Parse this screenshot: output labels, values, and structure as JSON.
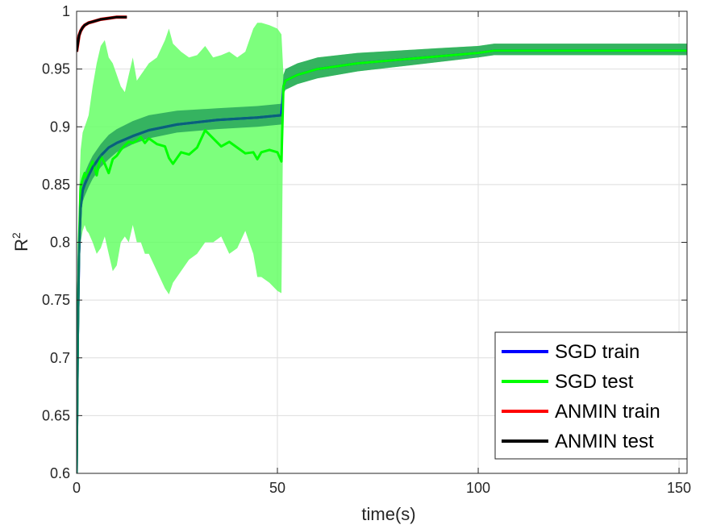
{
  "chart_data": {
    "type": "line",
    "title": "",
    "xlabel": "time(s)",
    "ylabel": "R",
    "ylabel_superscript": "2",
    "xlim": [
      0,
      152
    ],
    "ylim": [
      0.6,
      1.0
    ],
    "xticks": [
      0,
      50,
      100,
      150
    ],
    "xtick_labels": [
      "0",
      "50",
      "100",
      "150"
    ],
    "yticks": [
      0.6,
      0.65,
      0.7,
      0.75,
      0.8,
      0.85,
      0.9,
      0.95,
      1.0
    ],
    "ytick_labels": [
      "0.6",
      "0.65",
      "0.7",
      "0.75",
      "0.8",
      "0.85",
      "0.9",
      "0.95",
      "1"
    ],
    "grid": true,
    "legend_position": "bottom-right",
    "legend": [
      "SGD train",
      "SGD test",
      "ANMIN train",
      "ANMIN test"
    ],
    "series": [
      {
        "name": "SGD train",
        "color": "#0000ff",
        "x": [
          0,
          0.3,
          0.6,
          1,
          1.5,
          2,
          3,
          4,
          6,
          8,
          10,
          14,
          18,
          25,
          35,
          45,
          51,
          51.5,
          52,
          55,
          60,
          70,
          80,
          90,
          100,
          104,
          120,
          140,
          152
        ],
        "y": [
          0.6,
          0.72,
          0.79,
          0.83,
          0.845,
          0.85,
          0.858,
          0.865,
          0.875,
          0.882,
          0.886,
          0.892,
          0.897,
          0.902,
          0.906,
          0.908,
          0.91,
          0.935,
          0.94,
          0.945,
          0.95,
          0.955,
          0.958,
          0.961,
          0.964,
          0.966,
          0.966,
          0.966,
          0.966
        ],
        "band_lower": [
          0.6,
          0.71,
          0.78,
          0.82,
          0.835,
          0.84,
          0.848,
          0.855,
          0.865,
          0.872,
          0.878,
          0.885,
          0.89,
          0.895,
          0.898,
          0.9,
          0.902,
          0.928,
          0.932,
          0.937,
          0.942,
          0.948,
          0.952,
          0.956,
          0.96,
          0.962,
          0.962,
          0.962,
          0.962
        ],
        "band_upper": [
          0.6,
          0.73,
          0.8,
          0.84,
          0.855,
          0.86,
          0.868,
          0.875,
          0.885,
          0.893,
          0.898,
          0.905,
          0.91,
          0.914,
          0.916,
          0.918,
          0.92,
          0.945,
          0.95,
          0.955,
          0.96,
          0.964,
          0.966,
          0.968,
          0.97,
          0.972,
          0.972,
          0.972,
          0.972
        ]
      },
      {
        "name": "SGD test",
        "color": "#00ff00",
        "x": [
          0,
          0.3,
          0.6,
          1,
          1.5,
          2,
          2.5,
          3,
          4,
          5,
          6,
          7,
          8,
          9,
          10,
          11,
          12,
          13,
          14,
          15,
          16,
          17,
          18,
          20,
          22,
          23,
          24,
          26,
          28,
          30,
          32,
          34,
          36,
          38,
          40,
          42,
          44,
          45,
          46,
          48,
          50,
          51,
          51.5,
          52,
          55,
          60,
          70,
          80,
          90,
          100,
          104,
          120,
          140,
          152
        ],
        "y": [
          0.6,
          0.72,
          0.8,
          0.848,
          0.855,
          0.86,
          0.855,
          0.862,
          0.87,
          0.858,
          0.875,
          0.868,
          0.86,
          0.872,
          0.875,
          0.88,
          0.884,
          0.887,
          0.886,
          0.888,
          0.891,
          0.886,
          0.89,
          0.885,
          0.883,
          0.873,
          0.868,
          0.878,
          0.876,
          0.882,
          0.897,
          0.89,
          0.883,
          0.887,
          0.882,
          0.877,
          0.878,
          0.872,
          0.878,
          0.88,
          0.878,
          0.87,
          0.935,
          0.94,
          0.945,
          0.95,
          0.955,
          0.958,
          0.961,
          0.964,
          0.966,
          0.966,
          0.966,
          0.966
        ],
        "band_lower": [
          0.6,
          0.7,
          0.76,
          0.8,
          0.81,
          0.815,
          0.81,
          0.808,
          0.8,
          0.79,
          0.795,
          0.805,
          0.79,
          0.775,
          0.78,
          0.8,
          0.805,
          0.8,
          0.815,
          0.8,
          0.8,
          0.79,
          0.79,
          0.775,
          0.76,
          0.755,
          0.765,
          0.775,
          0.785,
          0.79,
          0.8,
          0.8,
          0.805,
          0.79,
          0.795,
          0.81,
          0.79,
          0.77,
          0.77,
          0.765,
          0.758,
          0.756,
          0.928,
          0.932,
          0.937,
          0.942,
          0.948,
          0.952,
          0.956,
          0.96,
          0.962,
          0.962,
          0.962,
          0.962
        ],
        "band_upper": [
          0.6,
          0.74,
          0.84,
          0.88,
          0.895,
          0.9,
          0.905,
          0.91,
          0.935,
          0.955,
          0.97,
          0.975,
          0.96,
          0.955,
          0.945,
          0.935,
          0.93,
          0.945,
          0.96,
          0.94,
          0.945,
          0.95,
          0.955,
          0.96,
          0.975,
          0.985,
          0.972,
          0.965,
          0.96,
          0.962,
          0.97,
          0.96,
          0.962,
          0.965,
          0.96,
          0.965,
          0.985,
          0.99,
          0.99,
          0.988,
          0.985,
          0.98,
          0.945,
          0.95,
          0.955,
          0.96,
          0.964,
          0.966,
          0.968,
          0.97,
          0.972,
          0.972,
          0.972,
          0.972
        ]
      },
      {
        "name": "ANMIN train",
        "color": "#ff0000",
        "x": [
          0,
          0.3,
          0.6,
          1,
          1.5,
          2,
          3,
          4,
          6,
          8,
          10,
          12.5
        ],
        "y": [
          0.965,
          0.972,
          0.979,
          0.983,
          0.986,
          0.988,
          0.99,
          0.991,
          0.993,
          0.994,
          0.995,
          0.995
        ]
      },
      {
        "name": "ANMIN test",
        "color": "#000000",
        "x": [
          0,
          0.3,
          0.6,
          1,
          1.5,
          2,
          3,
          4,
          6,
          8,
          10,
          12.5
        ],
        "y": [
          0.965,
          0.972,
          0.979,
          0.983,
          0.986,
          0.988,
          0.99,
          0.991,
          0.993,
          0.994,
          0.995,
          0.995
        ]
      }
    ]
  }
}
